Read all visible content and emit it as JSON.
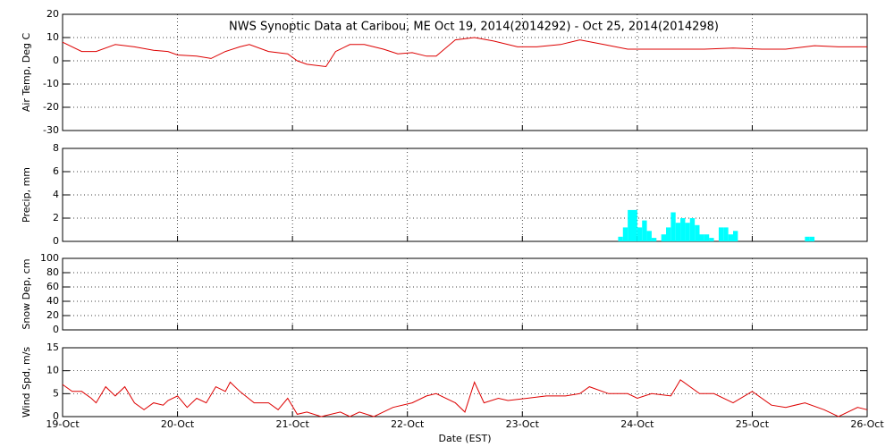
{
  "chart_data": [
    {
      "type": "line",
      "title": "NWS Synoptic Data at Caribou, ME   Oct 19, 2014(2014292) - Oct 25, 2014(2014298)",
      "ylabel": "Air Temp, Deg C",
      "color": "#dd0000",
      "x": [
        0,
        4,
        7,
        11,
        15,
        19,
        22,
        24,
        28,
        31,
        34,
        37,
        39,
        43,
        47,
        49,
        51,
        55,
        57,
        60,
        63,
        67,
        70,
        73,
        76,
        78,
        82,
        86,
        90,
        95,
        99,
        104,
        108,
        113,
        118,
        123,
        129,
        134,
        140,
        146,
        151,
        157,
        162,
        168
      ],
      "values": [
        8,
        4,
        4,
        7,
        6,
        4.5,
        4,
        2.5,
        2,
        1,
        4,
        6,
        7,
        4,
        3,
        0,
        -1.5,
        -2.5,
        4,
        7,
        7,
        5,
        3,
        3.5,
        2,
        2,
        9,
        10,
        8.5,
        6,
        6,
        7,
        9,
        7,
        5,
        5,
        5,
        5,
        5.5,
        5,
        5,
        6.5,
        6,
        6
      ],
      "ylim": [
        -30,
        20
      ],
      "yticks": [
        -30,
        -20,
        -10,
        0,
        10,
        20
      ],
      "grid": true
    },
    {
      "type": "bar",
      "ylabel": "Precip, mm",
      "color": "#00ffff",
      "x": [
        116,
        117,
        118,
        119,
        120,
        121,
        122,
        123,
        124,
        125,
        126,
        127,
        128,
        129,
        130,
        131,
        132,
        133,
        134,
        135,
        136,
        137,
        138,
        139,
        140,
        155,
        156
      ],
      "values": [
        0.4,
        1.2,
        2.7,
        2.7,
        1.2,
        1.8,
        0.9,
        0.3,
        0,
        0.6,
        1.2,
        2.5,
        1.6,
        2.0,
        1.6,
        2.0,
        1.4,
        0.6,
        0.6,
        0.3,
        0,
        1.2,
        1.2,
        0.6,
        0.9,
        0.4,
        0.4
      ],
      "ylim": [
        0,
        8
      ],
      "yticks": [
        0,
        2,
        4,
        6,
        8
      ],
      "grid": true
    },
    {
      "type": "line",
      "ylabel": "Snow Dep, cm",
      "color": "#dd0000",
      "x": [],
      "values": [],
      "ylim": [
        0,
        100
      ],
      "yticks": [
        0,
        20,
        40,
        60,
        80,
        100
      ],
      "grid": true
    },
    {
      "type": "line",
      "ylabel": "Wind Spd, m/s",
      "xlabel": "Date (EST)",
      "color": "#dd0000",
      "x": [
        0,
        2,
        4,
        6,
        7,
        9,
        11,
        13,
        15,
        17,
        19,
        21,
        22,
        24,
        26,
        28,
        30,
        32,
        34,
        35,
        37,
        40,
        43,
        45,
        47,
        49,
        51,
        54,
        58,
        60,
        62,
        65,
        69,
        73,
        76,
        78,
        82,
        84,
        86,
        88,
        91,
        93,
        97,
        101,
        105,
        108,
        110,
        114,
        118,
        120,
        123,
        127,
        129,
        133,
        136,
        140,
        144,
        148,
        151,
        155,
        159,
        162,
        166,
        168
      ],
      "values": [
        7,
        5.5,
        5.5,
        4,
        3,
        6.5,
        4.5,
        6.5,
        3,
        1.5,
        3,
        2.5,
        3.5,
        4.5,
        2,
        4,
        3,
        6.5,
        5.5,
        7.5,
        5.5,
        3,
        3,
        1.5,
        4,
        0.5,
        1,
        0,
        1,
        0,
        1,
        0,
        2,
        3,
        4.5,
        5,
        3,
        1,
        7.5,
        3,
        4,
        3.5,
        4,
        4.5,
        4.5,
        5,
        6.5,
        5,
        5,
        4,
        5,
        4.5,
        8,
        5,
        5,
        3,
        5.5,
        2.5,
        2,
        3,
        1.5,
        0,
        2,
        1.5
      ],
      "xlim": [
        0,
        168
      ],
      "xticks": [
        {
          "value": 0,
          "label": "19-Oct"
        },
        {
          "value": 24,
          "label": "20-Oct"
        },
        {
          "value": 48,
          "label": "21-Oct"
        },
        {
          "value": 72,
          "label": "22-Oct"
        },
        {
          "value": 96,
          "label": "23-Oct"
        },
        {
          "value": 120,
          "label": "24-Oct"
        },
        {
          "value": 144,
          "label": "25-Oct"
        },
        {
          "value": 168,
          "label": "26-Oct"
        }
      ],
      "ylim": [
        0,
        15
      ],
      "yticks": [
        0,
        5,
        10,
        15
      ],
      "grid": true
    }
  ]
}
